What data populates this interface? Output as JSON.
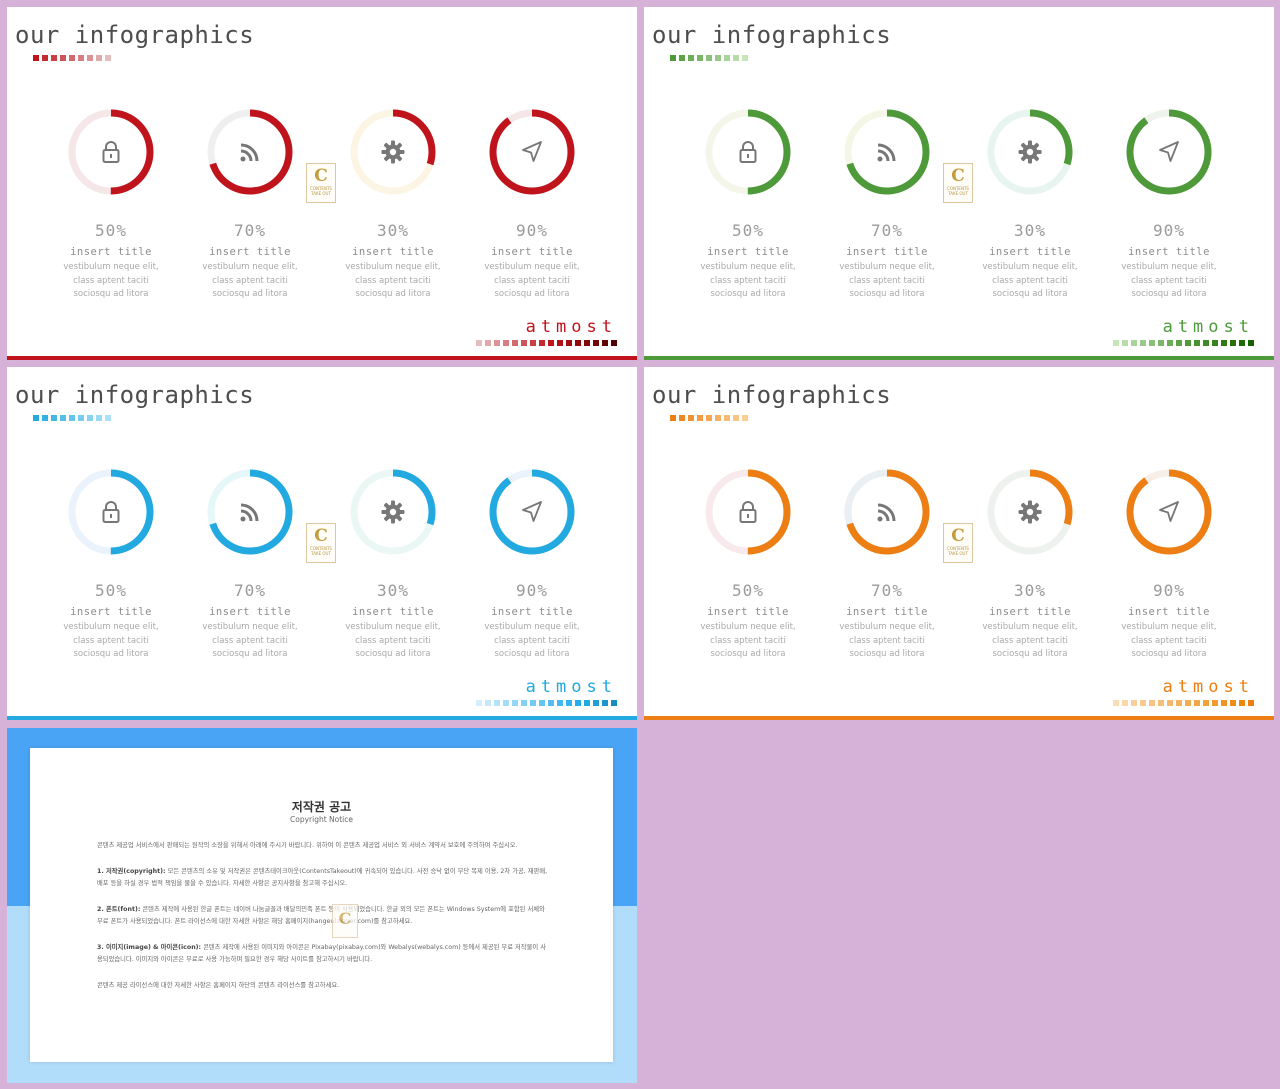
{
  "slides": [
    {
      "theme": "red",
      "title": "our infographics",
      "brand": "atmost",
      "accent": "#c0141c",
      "track": "#f5e6e8",
      "title_dash_colors": [
        "#c0141c",
        "#c42a30",
        "#c93f44",
        "#cd5458",
        "#d2696c",
        "#d67e81",
        "#db9395",
        "#dfa8a9",
        "#e4bdbe"
      ],
      "brand_dash_colors": [
        "#e4bdbe",
        "#dfa8a9",
        "#db9395",
        "#d67e81",
        "#d2696c",
        "#cd5458",
        "#c93f44",
        "#c42a30",
        "#c0141c",
        "#b01016",
        "#a00c10",
        "#900a0c",
        "#800808",
        "#700606",
        "#600404",
        "#500202"
      ],
      "bottom_line": "#c0141c",
      "items": [
        {
          "percent": "50%",
          "value": 0.5,
          "icon": "lock-icon",
          "track": "#f5e6e8",
          "title": "insert title",
          "lines": [
            "vestibulum neque elit,",
            "class aptent taciti",
            "sociosqu ad litora"
          ]
        },
        {
          "percent": "70%",
          "value": 0.7,
          "icon": "rss-icon",
          "track": "#efefef",
          "title": "insert title",
          "lines": [
            "vestibulum neque elit,",
            "class aptent taciti",
            "sociosqu ad litora"
          ]
        },
        {
          "percent": "30%",
          "value": 0.3,
          "icon": "gear-icon",
          "track": "#fdf5e4",
          "title": "insert title",
          "lines": [
            "vestibulum neque elit,",
            "class aptent taciti",
            "sociosqu ad litora"
          ]
        },
        {
          "percent": "90%",
          "value": 0.9,
          "icon": "navigation-arrow-icon",
          "track": "#f5e6e8",
          "title": "insert title",
          "lines": [
            "vestibulum neque elit,",
            "class aptent taciti",
            "sociosqu ad litora"
          ]
        }
      ]
    },
    {
      "theme": "green",
      "title": "our infographics",
      "brand": "atmost",
      "accent": "#4e9a3a",
      "track": "#f3f6e9",
      "title_dash_colors": [
        "#4e9a3a",
        "#5da34a",
        "#6cad5a",
        "#7bb66a",
        "#8ac07a",
        "#99c98a",
        "#a8d39a",
        "#b7dcaa",
        "#c6e6ba"
      ],
      "brand_dash_colors": [
        "#c6e6ba",
        "#b7dcaa",
        "#a8d39a",
        "#99c98a",
        "#8ac07a",
        "#7bb66a",
        "#6cad5a",
        "#5da34a",
        "#4e9a3a",
        "#46922f",
        "#3e8a25",
        "#36821b",
        "#2e7a11",
        "#267208",
        "#1e6a02",
        "#166200"
      ],
      "bottom_line": "#4e9a3a",
      "items": [
        {
          "percent": "50%",
          "value": 0.5,
          "icon": "lock-icon",
          "track": "#f3f6e9",
          "title": "insert title",
          "lines": [
            "vestibulum neque elit,",
            "class aptent taciti",
            "sociosqu ad litora"
          ]
        },
        {
          "percent": "70%",
          "value": 0.7,
          "icon": "rss-icon",
          "track": "#f4f7e6",
          "title": "insert title",
          "lines": [
            "vestibulum neque elit,",
            "class aptent taciti",
            "sociosqu ad litora"
          ]
        },
        {
          "percent": "30%",
          "value": 0.3,
          "icon": "gear-icon",
          "track": "#e8f4ef",
          "title": "insert title",
          "lines": [
            "vestibulum neque elit,",
            "class aptent taciti",
            "sociosqu ad litora"
          ]
        },
        {
          "percent": "90%",
          "value": 0.9,
          "icon": "navigation-arrow-icon",
          "track": "#eef3ec",
          "title": "insert title",
          "lines": [
            "vestibulum neque elit,",
            "class aptent taciti",
            "sociosqu ad litora"
          ]
        }
      ]
    },
    {
      "theme": "blue",
      "title": "our infographics",
      "brand": "atmost",
      "accent": "#22a9e0",
      "track": "#eaf2fb",
      "title_dash_colors": [
        "#22a9e0",
        "#33b0e3",
        "#44b7e6",
        "#55bee9",
        "#66c5ec",
        "#77ccef",
        "#88d3f2",
        "#99daf5",
        "#aae1f8"
      ],
      "brand_dash_colors": [
        "#d4eefb",
        "#c4e8fa",
        "#b4e2f9",
        "#a4dcf8",
        "#94d6f7",
        "#84d0f6",
        "#74caf5",
        "#64c4f4",
        "#54bef3",
        "#44b8f2",
        "#34b2f1",
        "#24acf0",
        "#22a9e0",
        "#1ea0d6",
        "#1a96cc",
        "#168cc2"
      ],
      "bottom_line": "#22a9e0",
      "items": [
        {
          "percent": "50%",
          "value": 0.5,
          "icon": "lock-icon",
          "track": "#eaf2fb",
          "title": "insert title",
          "lines": [
            "vestibulum neque elit,",
            "class aptent taciti",
            "sociosqu ad litora"
          ]
        },
        {
          "percent": "70%",
          "value": 0.7,
          "icon": "rss-icon",
          "track": "#e6f7fa",
          "title": "insert title",
          "lines": [
            "vestibulum neque elit,",
            "class aptent taciti",
            "sociosqu ad litora"
          ]
        },
        {
          "percent": "30%",
          "value": 0.3,
          "icon": "gear-icon",
          "track": "#eaf7f5",
          "title": "insert title",
          "lines": [
            "vestibulum neque elit,",
            "class aptent taciti",
            "sociosqu ad litora"
          ]
        },
        {
          "percent": "90%",
          "value": 0.9,
          "icon": "navigation-arrow-icon",
          "track": "#eaf2fb",
          "title": "insert title",
          "lines": [
            "vestibulum neque elit,",
            "class aptent taciti",
            "sociosqu ad litora"
          ]
        }
      ]
    },
    {
      "theme": "orange",
      "title": "our infographics",
      "brand": "atmost",
      "accent": "#ec7e14",
      "track": "#f8e9ec",
      "title_dash_colors": [
        "#ec7e14",
        "#ee8824",
        "#f09234",
        "#f29c44",
        "#f4a654",
        "#f6b064",
        "#f8ba74",
        "#fac484",
        "#fcce94"
      ],
      "brand_dash_colors": [
        "#fcdcb4",
        "#fad6a8",
        "#f9d09c",
        "#f8ca90",
        "#f7c484",
        "#f6be78",
        "#f5b86c",
        "#f4b260",
        "#f3ac54",
        "#f2a648",
        "#f1a03c",
        "#f09a30",
        "#ef9424",
        "#ee8e18",
        "#ed880c",
        "#ec7e14"
      ],
      "bottom_line": "#ec7e14",
      "items": [
        {
          "percent": "50%",
          "value": 0.5,
          "icon": "lock-icon",
          "track": "#f8e9ec",
          "title": "insert title",
          "lines": [
            "vestibulum neque elit,",
            "class aptent taciti",
            "sociosqu ad litora"
          ]
        },
        {
          "percent": "70%",
          "value": 0.7,
          "icon": "rss-icon",
          "track": "#eaeff4",
          "title": "insert title",
          "lines": [
            "vestibulum neque elit,",
            "class aptent taciti",
            "sociosqu ad litora"
          ]
        },
        {
          "percent": "30%",
          "value": 0.3,
          "icon": "gear-icon",
          "track": "#eef2ef",
          "title": "insert title",
          "lines": [
            "vestibulum neque elit,",
            "class aptent taciti",
            "sociosqu ad litora"
          ]
        },
        {
          "percent": "90%",
          "value": 0.9,
          "icon": "navigation-arrow-icon",
          "track": "#f8eee8",
          "title": "insert title",
          "lines": [
            "vestibulum neque elit,",
            "class aptent taciti",
            "sociosqu ad litora"
          ]
        }
      ]
    }
  ],
  "logo": {
    "letter": "C",
    "text": "CONTENTS",
    "subtext": "TAKE OUT"
  },
  "notice": {
    "title": "저작권 공고",
    "subtitle": "Copyright Notice",
    "paragraphs": [
      {
        "label": "",
        "text": "콘텐츠 제공업 서비스에서 판매되는 원작의 소장을 위해서 아래에 주시기 바랍니다. 위하여 이 콘텐츠 제공업 서비스 외 서비스 계약서 보호에 주의하여 주십시오."
      },
      {
        "label": "1. 저작권(copyright):",
        "text": " 모든 콘텐츠의 소유 및 저작권은 콘텐츠테이크아웃(ContentsTakeout)에 귀속되어 있습니다. 사전 승낙 없이 무단 복제 이용, 2차 가공, 재판매, 배포 등을 하실 경우 법적 책임을 물을 수 있습니다. 자세한 사항은 공지사항을 참고해 주십시오."
      },
      {
        "label": "2. 폰트(font):",
        "text": " 콘텐츠 제작에 사용된 한글 폰트는 네이버 나눔글꼴과 배달의민족 폰트 등이 사용되었습니다. 한글 외의 모든 폰트는 Windows System에 포함된 서체와 무료 폰트가 사용되었습니다. 폰트 라이선스에 대한 자세한 사항은 해당 홈페이지(hangeul.naver.com)를 참고하세요."
      },
      {
        "label": "3. 이미지(image) & 아이콘(icon):",
        "text": " 콘텐츠 제작에 사용된 이미지와 아이콘은 Pixabay(pixabay.com)와 Webalys(webalys.com) 등에서 제공된 무료 저작물이 사용되었습니다. 이미지와 아이콘은 무료로 사용 가능하며 필요한 경우 해당 사이트를 참고하시기 바랍니다."
      },
      {
        "label": "",
        "text": "콘텐츠 제공 라이선스에 대한 자세한 사항은 홈페이지 하단의 콘텐츠 라이선스를 참고하세요."
      }
    ]
  }
}
